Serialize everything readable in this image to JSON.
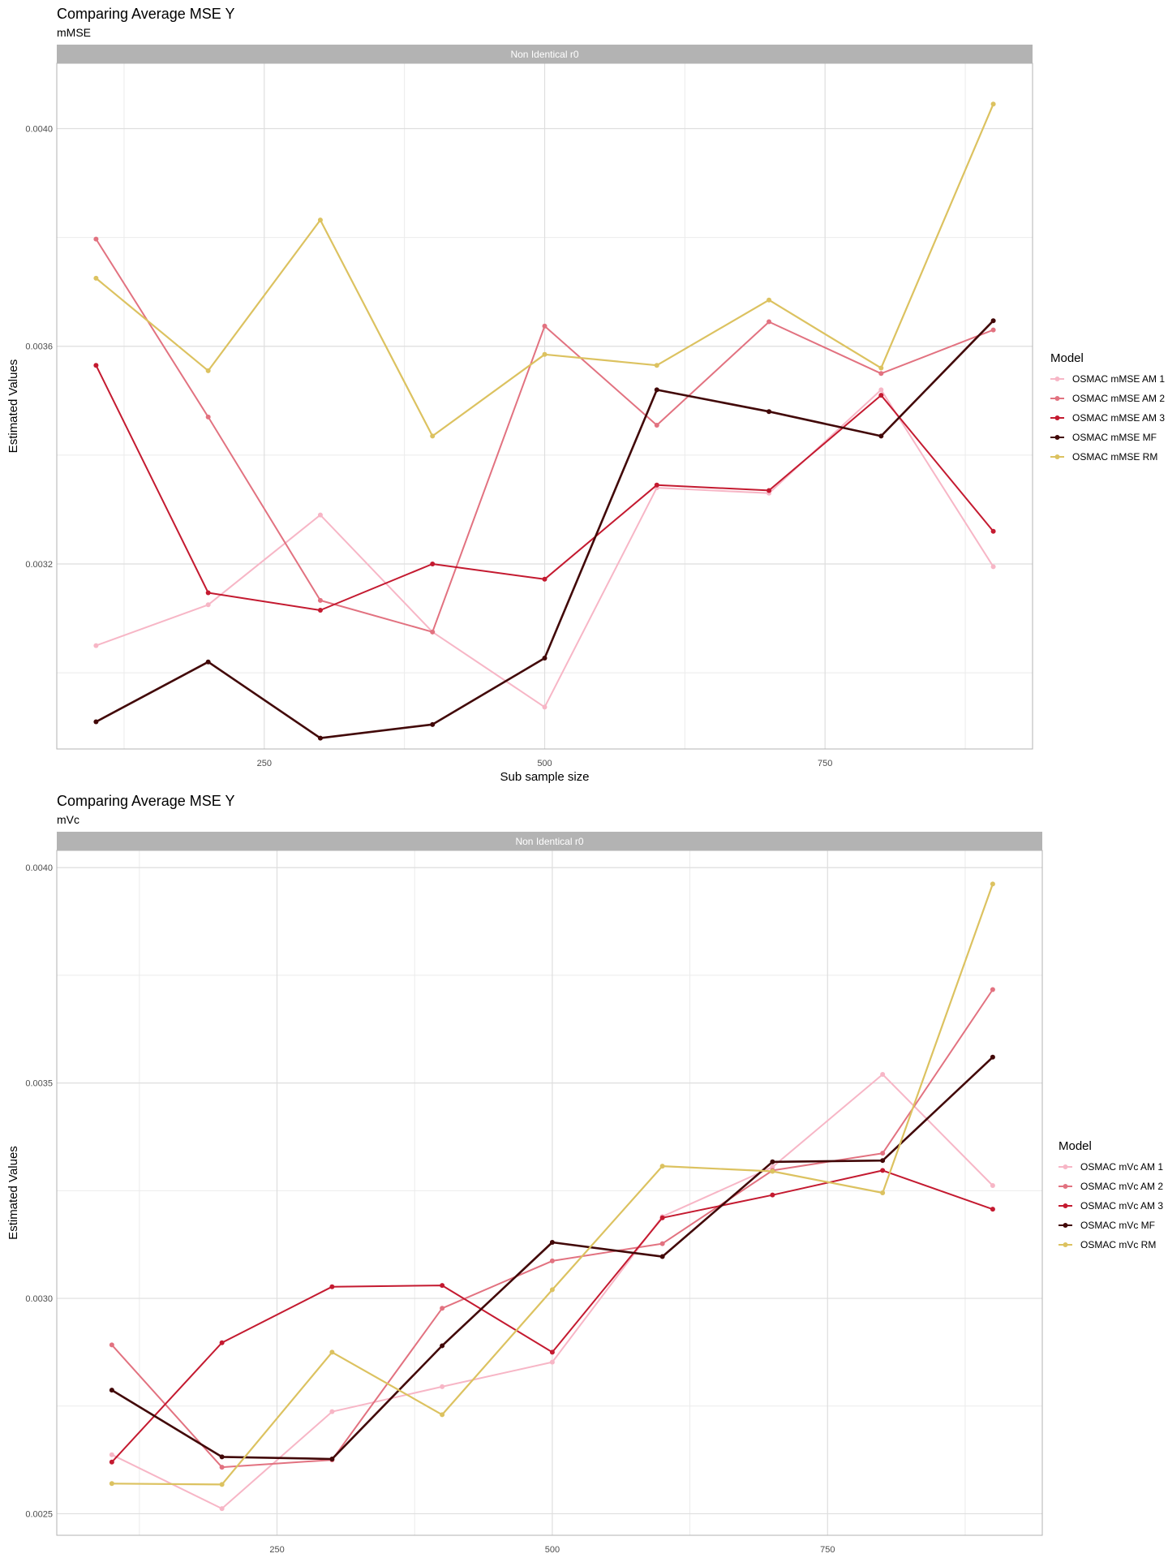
{
  "chart_data": [
    {
      "type": "line",
      "title": "Comparing Average MSE Y",
      "subtitle": "mMSE",
      "facet_label": "Non Identical r0",
      "xlabel": "Sub sample size",
      "ylabel": "Estimated Values",
      "legend_title": "Model",
      "legend_position": "right",
      "grid": true,
      "xlim": [
        65,
        935
      ],
      "ylim": [
        0.00286,
        0.00412
      ],
      "x_ticks": [
        250,
        500,
        750
      ],
      "x_tick_labels": [
        "250",
        "500",
        "750"
      ],
      "y_ticks": [
        0.0032,
        0.0036,
        0.004
      ],
      "y_tick_labels": [
        "0.0032",
        "0.0036",
        "0.0040"
      ],
      "x": [
        100,
        200,
        300,
        400,
        500,
        600,
        700,
        800,
        900
      ],
      "series": [
        {
          "name": "OSMAC mMSE AM 1",
          "color": "#f7b6c6",
          "values": [
            0.00305,
            0.003125,
            0.00329,
            0.003075,
            0.002937,
            0.00334,
            0.00333,
            0.00352,
            0.003195
          ]
        },
        {
          "name": "OSMAC mMSE AM 2",
          "color": "#e27280",
          "values": [
            0.003797,
            0.00347,
            0.003133,
            0.003075,
            0.003637,
            0.003455,
            0.003645,
            0.00355,
            0.00363
          ]
        },
        {
          "name": "OSMAC mMSE AM 3",
          "color": "#c41a30",
          "values": [
            0.003565,
            0.003147,
            0.003115,
            0.0032,
            0.003172,
            0.003345,
            0.003335,
            0.00351,
            0.00326
          ]
        },
        {
          "name": "OSMAC mMSE MF",
          "color": "#420808",
          "values": [
            0.00291,
            0.00302,
            0.00288,
            0.002905,
            0.003027,
            0.00352,
            0.00348,
            0.003435,
            0.003647
          ]
        },
        {
          "name": "OSMAC mMSE RM",
          "color": "#dcc260",
          "values": [
            0.003725,
            0.003555,
            0.003832,
            0.003435,
            0.003585,
            0.003565,
            0.003685,
            0.00356,
            0.004045
          ]
        }
      ]
    },
    {
      "type": "line",
      "title": "Comparing Average MSE Y",
      "subtitle": "mVc",
      "facet_label": "Non Identical r0",
      "xlabel": "Sub sample size",
      "ylabel": "Estimated Values",
      "legend_title": "Model",
      "legend_position": "right",
      "grid": true,
      "xlim": [
        50,
        945
      ],
      "ylim": [
        0.00245,
        0.00404
      ],
      "x_ticks": [
        250,
        500,
        750
      ],
      "x_tick_labels": [
        "250",
        "500",
        "750"
      ],
      "y_ticks": [
        0.0025,
        0.003,
        0.0035,
        0.004
      ],
      "y_tick_labels": [
        "0.0025",
        "0.0030",
        "0.0035",
        "0.0040"
      ],
      "x": [
        100,
        200,
        300,
        400,
        500,
        600,
        700,
        800,
        900
      ],
      "series": [
        {
          "name": "OSMAC mVc AM 1",
          "color": "#f7b6c6",
          "values": [
            0.002637,
            0.002512,
            0.002737,
            0.002795,
            0.002852,
            0.00319,
            0.003305,
            0.00352,
            0.003262
          ]
        },
        {
          "name": "OSMAC mVc AM 2",
          "color": "#e27280",
          "values": [
            0.002892,
            0.002608,
            0.002625,
            0.002977,
            0.003087,
            0.003127,
            0.003297,
            0.003337,
            0.003717
          ]
        },
        {
          "name": "OSMAC mVc AM 3",
          "color": "#c41a30",
          "values": [
            0.00262,
            0.002897,
            0.003027,
            0.00303,
            0.002875,
            0.003187,
            0.00324,
            0.003297,
            0.003207
          ]
        },
        {
          "name": "OSMAC mVc MF",
          "color": "#420808",
          "values": [
            0.002787,
            0.002632,
            0.002627,
            0.00289,
            0.00313,
            0.003097,
            0.003317,
            0.00332,
            0.00356
          ]
        },
        {
          "name": "OSMAC mVc RM",
          "color": "#dcc260",
          "values": [
            0.00257,
            0.002568,
            0.002875,
            0.00273,
            0.00302,
            0.003307,
            0.003295,
            0.003245,
            0.003962
          ]
        }
      ]
    }
  ]
}
